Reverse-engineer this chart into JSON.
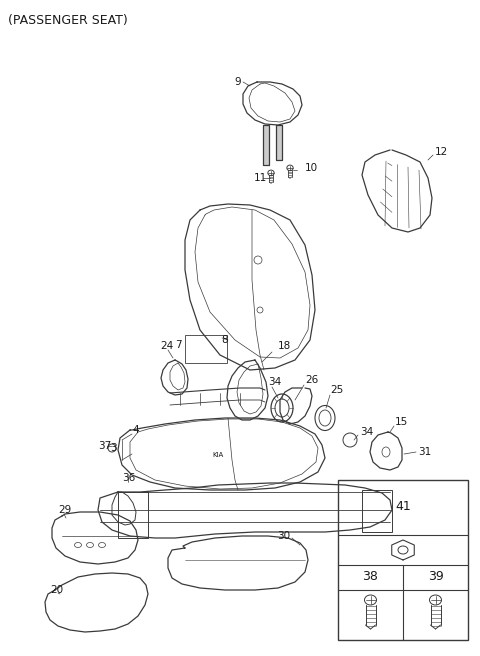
{
  "title": "(PASSENGER SEAT)",
  "bg": "#ffffff",
  "lc": "#3a3a3a",
  "tc": "#1a1a1a",
  "fs": 7.5,
  "fig_w": 4.8,
  "fig_h": 6.56,
  "dpi": 100
}
